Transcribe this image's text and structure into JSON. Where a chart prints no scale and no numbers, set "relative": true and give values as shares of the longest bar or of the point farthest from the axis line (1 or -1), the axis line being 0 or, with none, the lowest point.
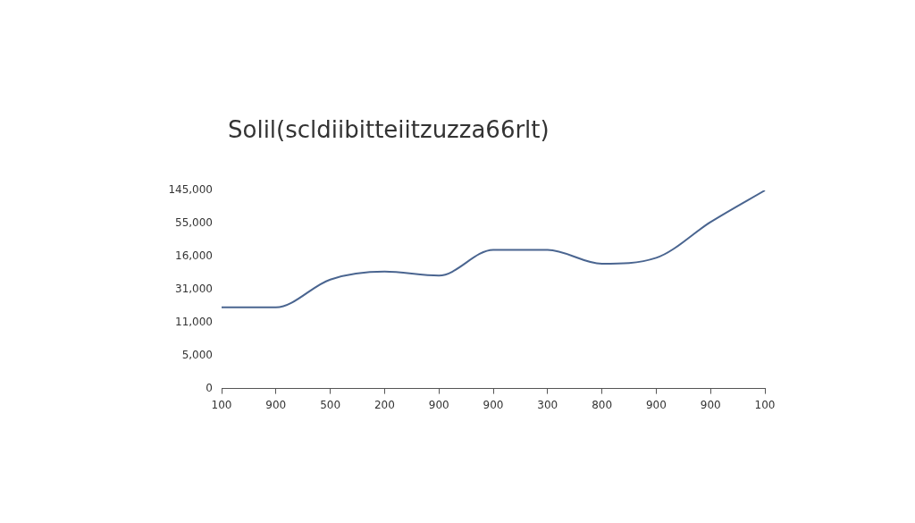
{
  "chart_data": {
    "type": "line",
    "title": "Solil(scldiibitteiitzuzza66rlt)",
    "categories": [
      "100",
      "900",
      "500",
      "200",
      "900",
      "900",
      "300",
      "800",
      "900",
      "900",
      "100"
    ],
    "series": [
      {
        "color": "#4a6590",
        "values": [
          0.41,
          0.41,
          0.55,
          0.59,
          0.57,
          0.7,
          0.7,
          0.63,
          0.66,
          0.84,
          1
        ]
      }
    ],
    "relative": true,
    "annotations": [
      "145,000",
      "55,000",
      "16,000",
      "31,000",
      "11,000",
      "5,000",
      "0"
    ],
    "grid": false,
    "legend": false,
    "marker": "none",
    "line_style": "solid"
  }
}
